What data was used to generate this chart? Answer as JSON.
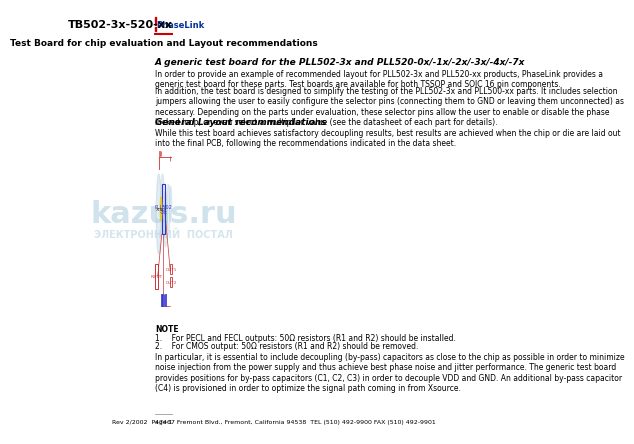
{
  "title_model": "TB502-3x-520-xx",
  "title_sub": "Test Board for chip evaluation and Layout recommendations",
  "logo_text_p": "PLL",
  "logo_text_company": "PhaseLink",
  "logo_bg": "#cc0000",
  "logo_text_color": "#ffffff",
  "company_text_color": "#003399",
  "header_line_color": "#cc0000",
  "section1_title": "A generic test board for the PLL502-3x and PLL520-0x/-1x/-2x/-3x/-4x/-7x",
  "section1_body1": "In order to provide an example of recommended layout for PLL502-3x and PLL520-xx products, PhaseLink provides a\ngeneric test board for these parts. Test boards are available for both TSSOP and SOIC 16 pin components.",
  "section1_body2": "In addition, the test board is designed to simplify the testing of the PLL502-3x and PLL500-xx parts. It includes selection\njumpers allowing the user to easily configure the selector pins (connecting them to GND or leaving them unconnected) as\nnecessary. Depending on the parts under evaluation, these selector pins allow the user to enable or disable the phase\nlocked loop, or even select a multiplier value (see the datasheet of each part for details).",
  "section2_title": "General Layout recommendations",
  "section2_body": "While this test board achieves satisfactory decoupling results, best results are achieved when the chip or die are laid out\ninto the final PCB, following the recommendations indicated in the data sheet.",
  "schematic_color_main": "#cc3333",
  "schematic_color_blue": "#3333cc",
  "schematic_color_cyan": "#aaccdd",
  "note_title": "NOTE",
  "note_line1": "1.    For PECL and FECL outputs: 50Ω resistors (R1 and R2) should be installed.",
  "note_line2": "2.    For CMOS output: 50Ω resistors (R1 and R2) should be removed.",
  "footer_address": "47467 Fremont Blvd., Fremont, California 94538  TEL (510) 492-9900 FAX (510) 492-9901",
  "footer_date": "Rev 2/2002  Page 1",
  "watermark_text": "kazus.ru",
  "watermark_subtext": "ЭЛЕКТРОННЫЙ  ПОСТАЛ",
  "bg_color": "#ffffff",
  "text_color": "#000000",
  "body_fontsize": 5.5,
  "title_fontsize": 8.5,
  "section_title_fontsize": 6.5
}
